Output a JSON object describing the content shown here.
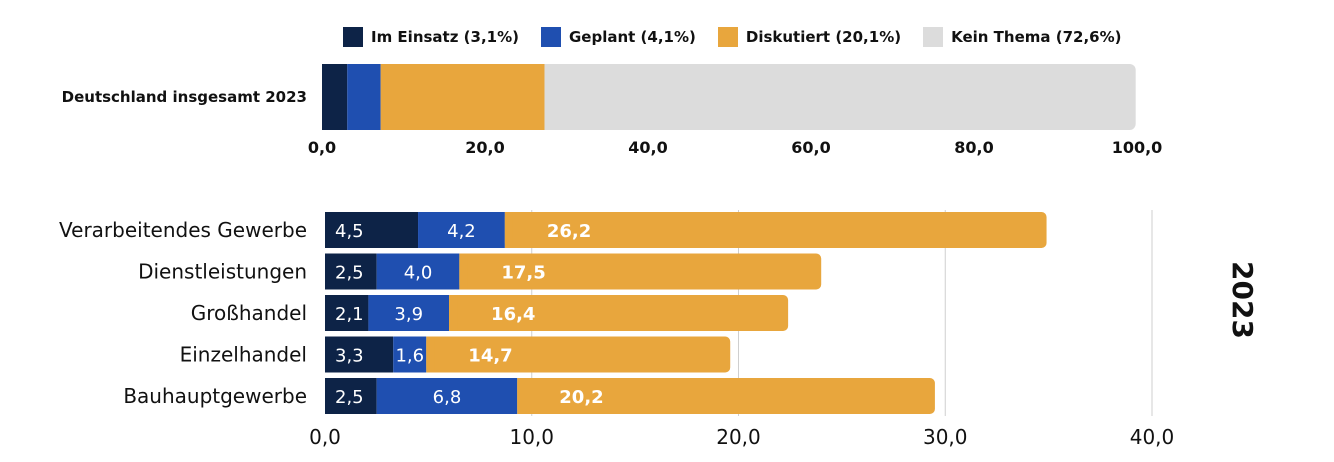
{
  "colors": {
    "im_einsatz": "#0d2347",
    "geplant": "#1f4fb0",
    "diskutiert": "#e8a63d",
    "kein_thema": "#dcdcdc",
    "grid": "#cfcfcf",
    "text": "#111111"
  },
  "legend": [
    {
      "label": "Im Einsatz (3,1%)",
      "color": "#0d2347"
    },
    {
      "label": "Geplant (4,1%)",
      "color": "#1f4fb0"
    },
    {
      "label": "Diskutiert (20,1%)",
      "color": "#e8a63d"
    },
    {
      "label": "Kein Thema (72,6%)",
      "color": "#dcdcdc"
    }
  ],
  "chart_data": [
    {
      "type": "bar",
      "orientation": "horizontal",
      "stacked": true,
      "categories": [
        "Deutschland insgesamt 2023"
      ],
      "series": [
        {
          "name": "Im Einsatz",
          "values": [
            3.1
          ]
        },
        {
          "name": "Geplant",
          "values": [
            4.1
          ]
        },
        {
          "name": "Diskutiert",
          "values": [
            20.1
          ]
        },
        {
          "name": "Kein Thema",
          "values": [
            72.6
          ]
        }
      ],
      "xlim": [
        0,
        100
      ],
      "xticks": [
        "0,0",
        "20,0",
        "40,0",
        "60,0",
        "80,0",
        "100,0"
      ],
      "grid": false
    },
    {
      "type": "bar",
      "orientation": "horizontal",
      "stacked": true,
      "categories": [
        "Verarbeitendes Gewerbe",
        "Dienstleistungen",
        "Großhandel",
        "Einzelhandel",
        "Bauhauptgewerbe"
      ],
      "series": [
        {
          "name": "Im Einsatz",
          "values": [
            4.5,
            2.5,
            2.1,
            3.3,
            2.5
          ],
          "labels": [
            "4,5",
            "2,5",
            "2,1",
            "3,3",
            "2,5"
          ]
        },
        {
          "name": "Geplant",
          "values": [
            4.2,
            4.0,
            3.9,
            1.6,
            6.8
          ],
          "labels": [
            "4,2",
            "4,0",
            "3,9",
            "1,6",
            "6,8"
          ]
        },
        {
          "name": "Diskutiert",
          "values": [
            26.2,
            17.5,
            16.4,
            14.7,
            20.2
          ],
          "labels": [
            "26,2",
            "17,5",
            "16,4",
            "14,7",
            "20,2"
          ]
        }
      ],
      "xlim": [
        0,
        40
      ],
      "xticks": [
        "0,0",
        "10,0",
        "20,0",
        "30,0",
        "40,0"
      ],
      "grid": true,
      "side_label": "2023"
    }
  ]
}
